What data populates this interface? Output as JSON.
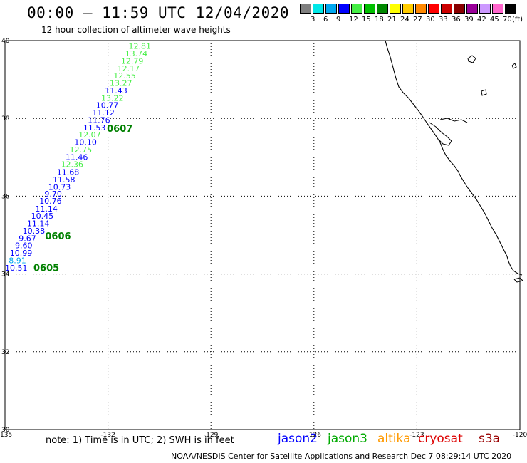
{
  "header": {
    "title": "00:00 – 11:59 UTC 12/04/2020",
    "subtitle": "12 hour collection of altimeter wave heights"
  },
  "colorbar": {
    "colors": [
      "#7f7f7f",
      "#00e8e8",
      "#00a8f0",
      "#0000ff",
      "#44ee44",
      "#00c000",
      "#008800",
      "#ffff00",
      "#ffcc00",
      "#ff8800",
      "#ff0000",
      "#cc0000",
      "#880000",
      "#990099",
      "#cc99ff",
      "#ff66cc",
      "#000000"
    ],
    "labels": [
      "3",
      "6",
      "9",
      "12",
      "15",
      "18",
      "21",
      "24",
      "27",
      "30",
      "33",
      "36",
      "39",
      "42",
      "45",
      "70"
    ],
    "unit": "(ft)"
  },
  "map": {
    "lon_ticks": [
      "-135",
      "-132",
      "-129",
      "-126",
      "-123",
      "-120"
    ],
    "lat_ticks": [
      "40",
      "38",
      "36",
      "34",
      "32",
      "30"
    ],
    "lon_range": [
      -135,
      -120
    ],
    "lat_range": [
      30,
      40
    ],
    "grid": "dotted"
  },
  "wave_heights": [
    {
      "value": "12.81",
      "lon": -131.4,
      "lat": 39.86,
      "color": "#44ee44"
    },
    {
      "value": "13.74",
      "lon": -131.5,
      "lat": 39.67,
      "color": "#44ee44"
    },
    {
      "value": "12.79",
      "lon": -131.62,
      "lat": 39.48,
      "color": "#44ee44"
    },
    {
      "value": "12.17",
      "lon": -131.73,
      "lat": 39.29,
      "color": "#44ee44"
    },
    {
      "value": "12.55",
      "lon": -131.84,
      "lat": 39.1,
      "color": "#44ee44"
    },
    {
      "value": "13.27",
      "lon": -131.95,
      "lat": 38.91,
      "color": "#44ee44"
    },
    {
      "value": "11.43",
      "lon": -132.09,
      "lat": 38.72,
      "color": "#0000ff"
    },
    {
      "value": "13.22",
      "lon": -132.2,
      "lat": 38.53,
      "color": "#44ee44"
    },
    {
      "value": "10.77",
      "lon": -132.35,
      "lat": 38.34,
      "color": "#0000ff"
    },
    {
      "value": "11.12",
      "lon": -132.46,
      "lat": 38.15,
      "color": "#0000ff"
    },
    {
      "value": "11.76",
      "lon": -132.59,
      "lat": 37.96,
      "color": "#0000ff"
    },
    {
      "value": "11.53",
      "lon": -132.72,
      "lat": 37.77,
      "color": "#0000ff"
    },
    {
      "value": "12.07",
      "lon": -132.86,
      "lat": 37.58,
      "color": "#44ee44"
    },
    {
      "value": "10.10",
      "lon": -132.98,
      "lat": 37.39,
      "color": "#0000ff"
    },
    {
      "value": "12.75",
      "lon": -133.12,
      "lat": 37.2,
      "color": "#44ee44"
    },
    {
      "value": "11.46",
      "lon": -133.24,
      "lat": 37.01,
      "color": "#0000ff"
    },
    {
      "value": "12.36",
      "lon": -133.37,
      "lat": 36.82,
      "color": "#44ee44"
    },
    {
      "value": "11.68",
      "lon": -133.49,
      "lat": 36.62,
      "color": "#0000ff"
    },
    {
      "value": "11.58",
      "lon": -133.61,
      "lat": 36.43,
      "color": "#0000ff"
    },
    {
      "value": "10.73",
      "lon": -133.74,
      "lat": 36.24,
      "color": "#0000ff"
    },
    {
      "value": "9.70",
      "lon": -133.85,
      "lat": 36.06,
      "color": "#0000ff"
    },
    {
      "value": "10.76",
      "lon": -134.0,
      "lat": 35.88,
      "color": "#0000ff"
    },
    {
      "value": "11.14",
      "lon": -134.12,
      "lat": 35.68,
      "color": "#0000ff"
    },
    {
      "value": "10.45",
      "lon": -134.24,
      "lat": 35.49,
      "color": "#0000ff"
    },
    {
      "value": "11.14",
      "lon": -134.36,
      "lat": 35.3,
      "color": "#0000ff"
    },
    {
      "value": "10.38",
      "lon": -134.49,
      "lat": 35.11,
      "color": "#0000ff"
    },
    {
      "value": "9.67",
      "lon": -134.6,
      "lat": 34.92,
      "color": "#0000ff"
    },
    {
      "value": "9.60",
      "lon": -134.71,
      "lat": 34.73,
      "color": "#0000ff"
    },
    {
      "value": "10.99",
      "lon": -134.86,
      "lat": 34.54,
      "color": "#0000ff"
    },
    {
      "value": "8.91",
      "lon": -134.89,
      "lat": 34.35,
      "color": "#00a8f0"
    },
    {
      "value": "10.51",
      "lon": -135.0,
      "lat": 34.16,
      "color": "#0000ff"
    }
  ],
  "date_labels": [
    {
      "text": "0607",
      "lon": -132.03,
      "lat": 37.75
    },
    {
      "text": "0606",
      "lon": -133.83,
      "lat": 34.98
    },
    {
      "text": "0605",
      "lon": -134.17,
      "lat": 34.17
    }
  ],
  "footer": {
    "note": "note:  1) Time is in UTC;  2) SWH is in feet",
    "satellites": [
      {
        "name": "jason2",
        "color": "#0000ff"
      },
      {
        "name": "jason3",
        "color": "#00aa00"
      },
      {
        "name": "altika",
        "color": "#ff9900"
      },
      {
        "name": "cryosat",
        "color": "#dd0000"
      },
      {
        "name": "s3a",
        "color": "#990000"
      }
    ],
    "credit": "NOAA/NESDIS Center for Satellite Applications and Research    Dec  7 08:29:14 UTC 2020"
  }
}
